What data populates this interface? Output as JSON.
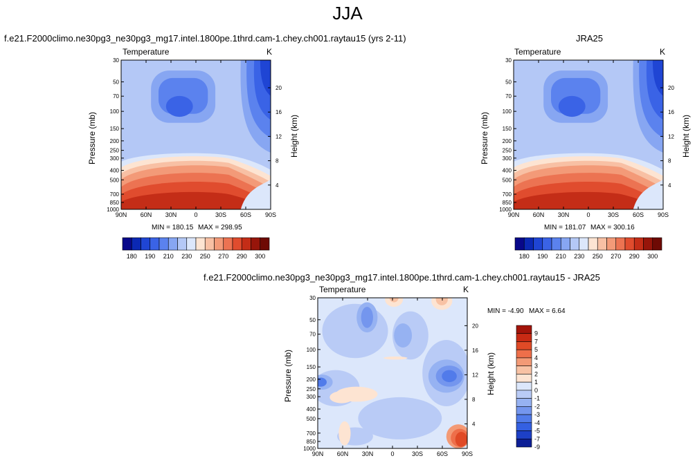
{
  "title": "JJA",
  "chart_data": [
    {
      "type": "heatmap",
      "title": "f.e21.F2000climo.ne30pg3_ne30pg3_mg17.intel.1800pe.1thrd.cam-1.chey.ch001.raytau15 (yrs 2-11)",
      "field_label": "Temperature",
      "units": "K",
      "xlabel": "",
      "ylabel": "Pressure (mb)",
      "ylabel_right": "Height (km)",
      "x_ticks": [
        "90N",
        "60N",
        "30N",
        "0",
        "30S",
        "60S",
        "90S"
      ],
      "y_ticks": [
        "30",
        "50",
        "70",
        "100",
        "150",
        "200",
        "250",
        "300",
        "400",
        "500",
        "700",
        "850",
        "1000"
      ],
      "y_ticks_right": [
        "20",
        "16",
        "12",
        "8",
        "4"
      ],
      "ylim": [
        1000,
        30
      ],
      "log_scale_y": true,
      "min_label": "MIN = 180.15",
      "max_label": "MAX = 298.95",
      "colorbar_levels": [
        "180",
        "190",
        "210",
        "230",
        "250",
        "270",
        "290",
        "300"
      ]
    },
    {
      "type": "heatmap",
      "title": "JRA25",
      "field_label": "Temperature",
      "units": "K",
      "xlabel": "",
      "ylabel": "Pressure (mb)",
      "ylabel_right": "Height (km)",
      "x_ticks": [
        "90N",
        "60N",
        "30N",
        "0",
        "30S",
        "60S",
        "90S"
      ],
      "y_ticks": [
        "30",
        "50",
        "70",
        "100",
        "150",
        "200",
        "250",
        "300",
        "400",
        "500",
        "700",
        "850",
        "1000"
      ],
      "y_ticks_right": [
        "20",
        "16",
        "12",
        "8",
        "4"
      ],
      "ylim": [
        1000,
        30
      ],
      "log_scale_y": true,
      "min_label": "MIN = 181.07",
      "max_label": "MAX = 300.16",
      "colorbar_levels": [
        "180",
        "190",
        "210",
        "230",
        "250",
        "270",
        "290",
        "300"
      ]
    },
    {
      "type": "heatmap",
      "title": "f.e21.F2000climo.ne30pg3_ne30pg3_mg17.intel.1800pe.1thrd.cam-1.chey.ch001.raytau15 - JRA25",
      "field_label": "Temperature",
      "units": "K",
      "xlabel": "",
      "ylabel": "Pressure (mb)",
      "ylabel_right": "Height (km)",
      "x_ticks": [
        "90N",
        "60N",
        "30N",
        "0",
        "30S",
        "60S",
        "90S"
      ],
      "y_ticks": [
        "30",
        "50",
        "70",
        "100",
        "150",
        "200",
        "250",
        "300",
        "400",
        "500",
        "700",
        "850",
        "1000"
      ],
      "y_ticks_right": [
        "20",
        "16",
        "12",
        "8",
        "4"
      ],
      "ylim": [
        1000,
        30
      ],
      "log_scale_y": true,
      "min_label": "MIN =  -4.90",
      "max_label": "MAX =   6.64",
      "colorbar_levels": [
        "9",
        "7",
        "5",
        "4",
        "3",
        "2",
        "1",
        "0",
        "-1",
        "-2",
        "-3",
        "-4",
        "-5",
        "-7",
        "-9"
      ]
    }
  ],
  "colors": {
    "temperature_scale": [
      "#08088a",
      "#0b28b4",
      "#1f45d4",
      "#3a63e6",
      "#5b82ee",
      "#87a6f2",
      "#b4c8f6",
      "#dce7fb",
      "#fde4d2",
      "#f8c0a4",
      "#f39a78",
      "#ec7352",
      "#e04c2e",
      "#c42d17",
      "#97150a",
      "#6e0a04"
    ],
    "difference_scale": [
      "#a3140a",
      "#c82a14",
      "#e04a26",
      "#ee6f4a",
      "#f39a76",
      "#f8c2a4",
      "#fde4d2",
      "#dce7fb",
      "#b9cbf6",
      "#96b2f2",
      "#7496ee",
      "#517bea",
      "#3460e2",
      "#1d40c6",
      "#0d1f96"
    ]
  }
}
